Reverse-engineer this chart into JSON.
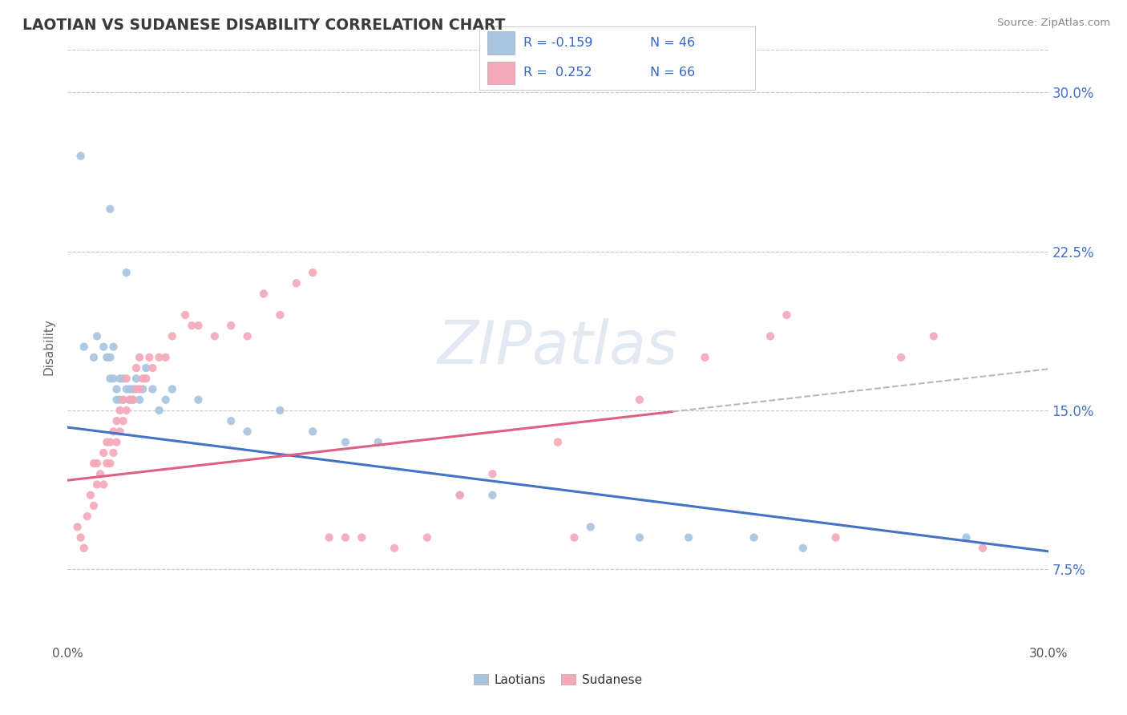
{
  "title": "LAOTIAN VS SUDANESE DISABILITY CORRELATION CHART",
  "source": "Source: ZipAtlas.com",
  "watermark": "ZIPatlas",
  "ylabel": "Disability",
  "xmin": 0.0,
  "xmax": 0.3,
  "ymin": 0.04,
  "ymax": 0.32,
  "yticks": [
    0.075,
    0.15,
    0.225,
    0.3
  ],
  "ytick_labels": [
    "7.5%",
    "15.0%",
    "22.5%",
    "30.0%"
  ],
  "xticks": [
    0.0,
    0.05,
    0.1,
    0.15,
    0.2,
    0.25,
    0.3
  ],
  "xtick_labels_show": [
    "0.0%",
    "30.0%"
  ],
  "laotian_color": "#a8c4e0",
  "sudanese_color": "#f4a8b8",
  "laotian_line_color": "#4472c4",
  "sudanese_line_color": "#e06080",
  "laotian_R": -0.159,
  "laotian_N": 46,
  "sudanese_R": 0.252,
  "sudanese_N": 66,
  "laotian_intercept": 0.142,
  "laotian_slope": -0.195,
  "sudanese_intercept": 0.117,
  "sudanese_slope": 0.175,
  "laotian_points_x": [
    0.004,
    0.013,
    0.018,
    0.005,
    0.008,
    0.009,
    0.011,
    0.012,
    0.013,
    0.013,
    0.014,
    0.014,
    0.015,
    0.015,
    0.016,
    0.016,
    0.017,
    0.017,
    0.018,
    0.019,
    0.019,
    0.02,
    0.02,
    0.021,
    0.022,
    0.023,
    0.024,
    0.026,
    0.028,
    0.03,
    0.032,
    0.04,
    0.05,
    0.055,
    0.065,
    0.075,
    0.085,
    0.095,
    0.12,
    0.13,
    0.16,
    0.175,
    0.19,
    0.21,
    0.225,
    0.275
  ],
  "laotian_points_y": [
    0.27,
    0.245,
    0.215,
    0.18,
    0.175,
    0.185,
    0.18,
    0.175,
    0.165,
    0.175,
    0.165,
    0.18,
    0.16,
    0.155,
    0.155,
    0.165,
    0.155,
    0.165,
    0.16,
    0.155,
    0.16,
    0.155,
    0.16,
    0.165,
    0.155,
    0.16,
    0.17,
    0.16,
    0.15,
    0.155,
    0.16,
    0.155,
    0.145,
    0.14,
    0.15,
    0.14,
    0.135,
    0.135,
    0.11,
    0.11,
    0.095,
    0.09,
    0.09,
    0.09,
    0.085,
    0.09
  ],
  "sudanese_points_x": [
    0.003,
    0.004,
    0.005,
    0.006,
    0.007,
    0.008,
    0.008,
    0.009,
    0.009,
    0.01,
    0.011,
    0.011,
    0.012,
    0.012,
    0.013,
    0.013,
    0.014,
    0.014,
    0.015,
    0.015,
    0.016,
    0.016,
    0.017,
    0.017,
    0.018,
    0.018,
    0.019,
    0.02,
    0.021,
    0.021,
    0.022,
    0.022,
    0.023,
    0.024,
    0.025,
    0.026,
    0.028,
    0.03,
    0.032,
    0.036,
    0.038,
    0.04,
    0.045,
    0.05,
    0.055,
    0.06,
    0.065,
    0.07,
    0.075,
    0.08,
    0.085,
    0.09,
    0.1,
    0.11,
    0.12,
    0.13,
    0.15,
    0.155,
    0.175,
    0.195,
    0.215,
    0.22,
    0.235,
    0.255,
    0.265,
    0.28
  ],
  "sudanese_points_y": [
    0.095,
    0.09,
    0.085,
    0.1,
    0.11,
    0.125,
    0.105,
    0.115,
    0.125,
    0.12,
    0.115,
    0.13,
    0.125,
    0.135,
    0.125,
    0.135,
    0.13,
    0.14,
    0.135,
    0.145,
    0.14,
    0.15,
    0.145,
    0.155,
    0.15,
    0.165,
    0.155,
    0.155,
    0.16,
    0.17,
    0.16,
    0.175,
    0.165,
    0.165,
    0.175,
    0.17,
    0.175,
    0.175,
    0.185,
    0.195,
    0.19,
    0.19,
    0.185,
    0.19,
    0.185,
    0.205,
    0.195,
    0.21,
    0.215,
    0.09,
    0.09,
    0.09,
    0.085,
    0.09,
    0.11,
    0.12,
    0.135,
    0.09,
    0.155,
    0.175,
    0.185,
    0.195,
    0.09,
    0.175,
    0.185,
    0.085
  ]
}
